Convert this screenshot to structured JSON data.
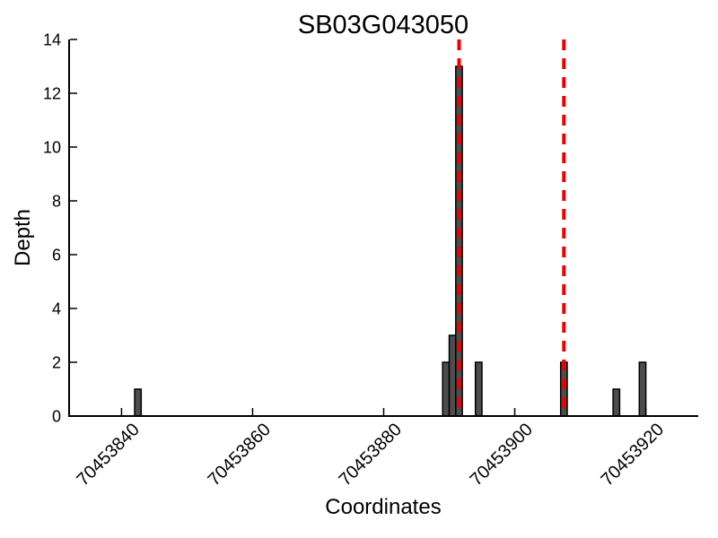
{
  "figure": {
    "background": "#ffffff"
  },
  "chart_data": {
    "type": "bar",
    "title": "SB03G043050",
    "xlabel": "Coordinates",
    "ylabel": "Depth",
    "xlim": [
      70453832,
      70453928
    ],
    "ylim": [
      0,
      14
    ],
    "x_ticks": [
      70453840,
      70453860,
      70453880,
      70453900,
      70453920
    ],
    "y_ticks": [
      0,
      2,
      4,
      6,
      8,
      10,
      12,
      14
    ],
    "x_tick_rotation": 45,
    "grid": false,
    "legend": "none",
    "bar_width": 1,
    "bar_align": "edge",
    "bars": [
      {
        "coordinate": 70453842,
        "depth": 1
      },
      {
        "coordinate": 70453889,
        "depth": 2
      },
      {
        "coordinate": 70453890,
        "depth": 3
      },
      {
        "coordinate": 70453891,
        "depth": 13
      },
      {
        "coordinate": 70453894,
        "depth": 2
      },
      {
        "coordinate": 70453907,
        "depth": 2
      },
      {
        "coordinate": 70453915,
        "depth": 1
      },
      {
        "coordinate": 70453919,
        "depth": 2
      }
    ],
    "marker_lines": [
      70453891,
      70453907
    ],
    "marker_style": "dashed",
    "colors": {
      "bar_fill": "#4d4d4d",
      "bar_border": "#000000",
      "marker_line": "#ee0000",
      "axis": "#000000",
      "text": "#000000"
    }
  }
}
